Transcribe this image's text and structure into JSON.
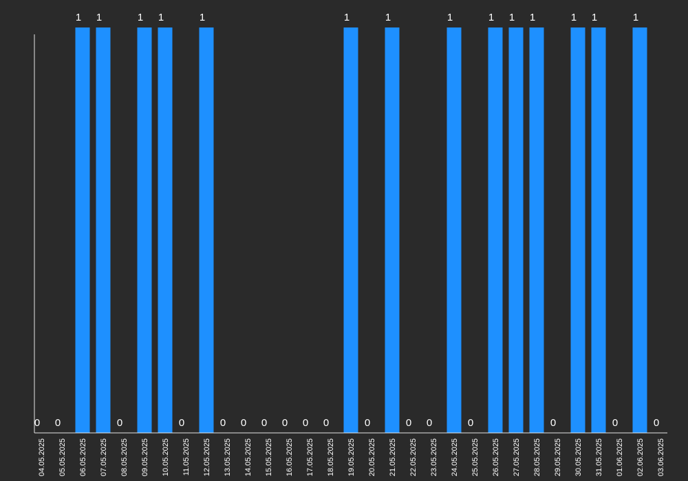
{
  "colors": {
    "background": "#2a2a2a",
    "bar": "#1e90ff",
    "axis": "#e6e6e6",
    "text": "#ffffff"
  },
  "chart_data": {
    "type": "bar",
    "title": "",
    "xlabel": "",
    "ylabel": "",
    "ylim": [
      0,
      1
    ],
    "grid": false,
    "data_labels": true,
    "categories": [
      "04.05.2025",
      "05.05.2025",
      "06.05.2025",
      "07.05.2025",
      "08.05.2025",
      "09.05.2025",
      "10.05.2025",
      "11.05.2025",
      "12.05.2025",
      "13.05.2025",
      "14.05.2025",
      "15.05.2025",
      "16.05.2025",
      "17.05.2025",
      "18.05.2025",
      "19.05.2025",
      "20.05.2025",
      "21.05.2025",
      "22.05.2025",
      "23.05.2025",
      "24.05.2025",
      "25.05.2025",
      "26.05.2025",
      "27.05.2025",
      "28.05.2025",
      "29.05.2025",
      "30.05.2025",
      "31.05.2025",
      "01.06.2025",
      "02.06.2025",
      "03.06.2025"
    ],
    "values": [
      0,
      0,
      1,
      1,
      0,
      1,
      1,
      0,
      1,
      0,
      0,
      0,
      0,
      0,
      0,
      1,
      0,
      1,
      0,
      0,
      1,
      0,
      1,
      1,
      1,
      0,
      1,
      1,
      0,
      1,
      0
    ]
  }
}
